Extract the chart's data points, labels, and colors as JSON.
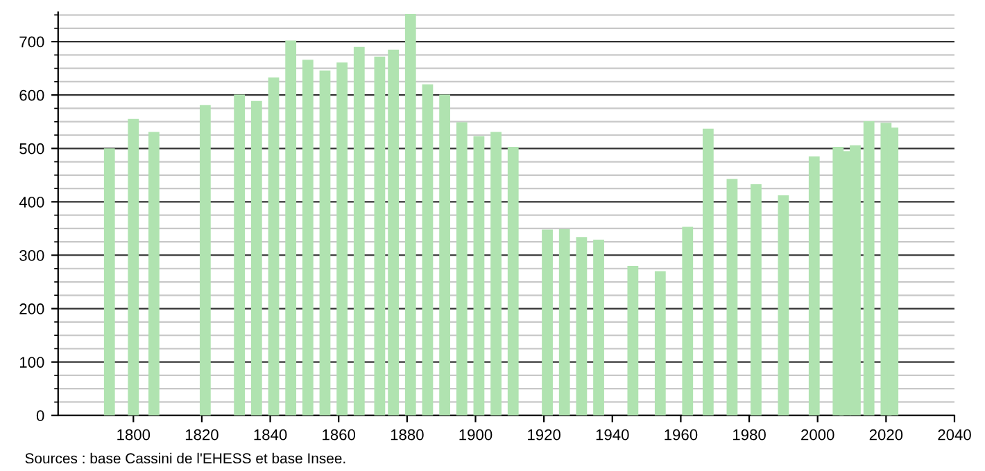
{
  "chart_data": {
    "type": "bar",
    "x": [
      1793,
      1800,
      1806,
      1821,
      1831,
      1836,
      1841,
      1846,
      1851,
      1856,
      1861,
      1866,
      1872,
      1876,
      1881,
      1886,
      1891,
      1896,
      1901,
      1906,
      1911,
      1921,
      1926,
      1931,
      1936,
      1946,
      1954,
      1962,
      1968,
      1975,
      1982,
      1990,
      1999,
      2006,
      2008,
      2011,
      2015,
      2020,
      2022
    ],
    "values": [
      500,
      555,
      531,
      581,
      601,
      589,
      633,
      702,
      666,
      646,
      661,
      690,
      672,
      685,
      752,
      620,
      601,
      549,
      523,
      531,
      503,
      348,
      349,
      334,
      329,
      280,
      270,
      353,
      537,
      443,
      433,
      412,
      485,
      503,
      495,
      506,
      551,
      548,
      539
    ],
    "color": "#b0e3b0",
    "xlim": [
      1778,
      2040
    ],
    "xticks": [
      1800,
      1820,
      1840,
      1860,
      1880,
      1900,
      1920,
      1940,
      1960,
      1980,
      2000,
      2020,
      2040
    ],
    "ylim": [
      0,
      755
    ],
    "yticks": [
      0,
      100,
      200,
      300,
      400,
      500,
      600,
      700
    ],
    "grid": "y",
    "annotations": [
      "Sources : base Cassini de l'EHESS et base Insee."
    ]
  }
}
